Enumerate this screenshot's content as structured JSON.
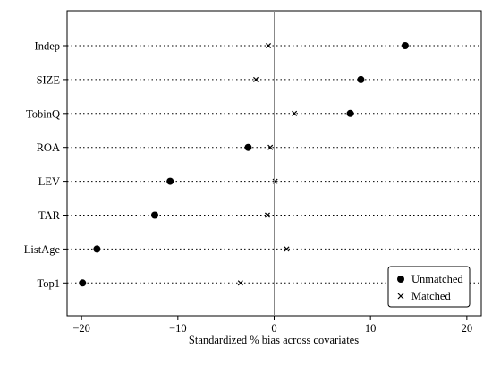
{
  "chart_data": {
    "type": "scatter",
    "title": "",
    "xlabel": "Standardized % bias across covariates",
    "ylabel": "",
    "xlim": [
      -21.5,
      21.5
    ],
    "xticks": [
      -20,
      -10,
      0,
      10,
      20
    ],
    "xtick_labels": [
      "−20",
      "−10",
      "0",
      "10",
      "20"
    ],
    "categories": [
      "Indep",
      "SIZE",
      "TobinQ",
      "ROA",
      "LEV",
      "TAR",
      "ListAge",
      "Top1"
    ],
    "series": [
      {
        "name": "Unmatched",
        "marker": "dot",
        "values": [
          13.6,
          9.0,
          7.9,
          -2.7,
          -10.8,
          -12.4,
          -18.4,
          -19.9
        ]
      },
      {
        "name": "Matched",
        "marker": "cross",
        "values": [
          -0.6,
          -1.9,
          2.1,
          -0.4,
          0.1,
          -0.7,
          1.3,
          -3.5
        ]
      }
    ],
    "reference_line_x": 0,
    "legend_position": "bottom-right",
    "grid": false
  }
}
